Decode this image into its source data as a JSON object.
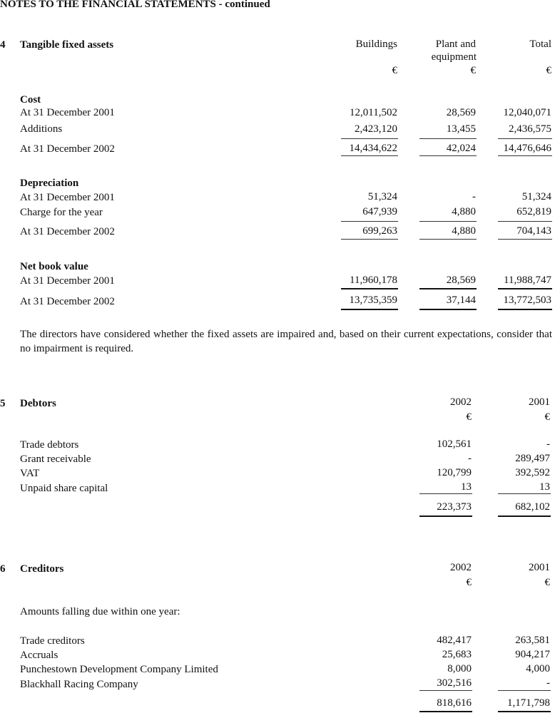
{
  "header": "NOTES TO THE FINANCIAL STATEMENTS - continued",
  "note4": {
    "number": "4",
    "title": "Tangible fixed assets",
    "columns": [
      "Buildings",
      "Plant and equipment",
      "Total"
    ],
    "col2_line1": "Plant and",
    "col2_line2": "equipment",
    "currency": "€",
    "cost": {
      "heading": "Cost",
      "rows": [
        {
          "label": "At 31 December 2001",
          "values": [
            "12,011,502",
            "28,569",
            "12,040,071"
          ]
        },
        {
          "label": "Additions",
          "values": [
            "2,423,120",
            "13,455",
            "2,436,575"
          ]
        },
        {
          "label": "At 31 December 2002",
          "values": [
            "14,434,622",
            "42,024",
            "14,476,646"
          ]
        }
      ]
    },
    "depreciation": {
      "heading": "Depreciation",
      "rows": [
        {
          "label": "At 31 December 2001",
          "values": [
            "51,324",
            "-",
            "51,324"
          ]
        },
        {
          "label": "Charge for the year",
          "values": [
            "647,939",
            "4,880",
            "652,819"
          ]
        },
        {
          "label": "At 31 December 2002",
          "values": [
            "699,263",
            "4,880",
            "704,143"
          ]
        }
      ]
    },
    "nbv": {
      "heading": "Net book value",
      "rows": [
        {
          "label": "At 31 December 2001",
          "values": [
            "11,960,178",
            "28,569",
            "11,988,747"
          ]
        },
        {
          "label": "At 31 December 2002",
          "values": [
            "13,735,359",
            "37,144",
            "13,772,503"
          ]
        }
      ]
    },
    "note_text": "The directors have considered whether the fixed assets are impaired and, based on their current expectations, consider that no impairment is required."
  },
  "note5": {
    "number": "5",
    "title": "Debtors",
    "columns": [
      "2002",
      "2001"
    ],
    "currency": "€",
    "rows": [
      {
        "label": "Trade debtors",
        "values": [
          "102,561",
          "-"
        ]
      },
      {
        "label": "Grant receivable",
        "values": [
          "-",
          "289,497"
        ]
      },
      {
        "label": "VAT",
        "values": [
          "120,799",
          "392,592"
        ]
      },
      {
        "label": "Unpaid share capital",
        "values": [
          "13",
          "13"
        ]
      }
    ],
    "total": [
      "223,373",
      "682,102"
    ]
  },
  "note6": {
    "number": "6",
    "title": "Creditors",
    "columns": [
      "2002",
      "2001"
    ],
    "currency": "€",
    "subheading": "Amounts falling due within one year:",
    "rows": [
      {
        "label": "Trade creditors",
        "values": [
          "482,417",
          "263,581"
        ]
      },
      {
        "label": "Accruals",
        "values": [
          "25,683",
          "904,217"
        ]
      },
      {
        "label": "Punchestown Development Company Limited",
        "values": [
          "8,000",
          "4,000"
        ]
      },
      {
        "label": "Blackhall Racing Company",
        "values": [
          "302,516",
          "-"
        ]
      }
    ],
    "total": [
      "818,616",
      "1,171,798"
    ]
  }
}
